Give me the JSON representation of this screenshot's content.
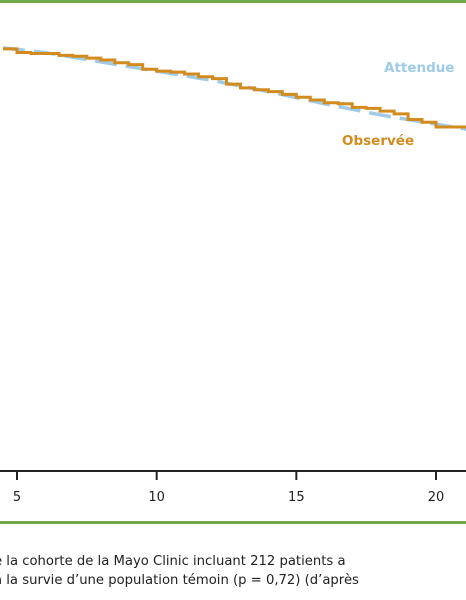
{
  "chart_data": {
    "type": "line",
    "title": "",
    "xlabel": "",
    "ylabel": "",
    "x_ticks": [
      5,
      10,
      15,
      20
    ],
    "xlim": [
      4.5,
      21.2
    ],
    "ylim": [
      0,
      1.0
    ],
    "grid": false,
    "series": [
      {
        "name": "Attendue",
        "color": "#9fcbe8",
        "style": "dashed",
        "x": [
          4.5,
          6,
          8,
          10,
          12,
          14,
          16,
          18,
          20,
          21.2
        ],
        "y": [
          0.97,
          0.965,
          0.955,
          0.945,
          0.935,
          0.923,
          0.91,
          0.898,
          0.888,
          0.882
        ]
      },
      {
        "name": "Observée",
        "color": "#d38b1e",
        "style": "step",
        "x": [
          4.5,
          5.0,
          5.5,
          6.5,
          7.0,
          7.5,
          8.0,
          8.5,
          9.0,
          9.5,
          10.0,
          10.5,
          11.0,
          11.5,
          12.0,
          12.5,
          13.0,
          13.5,
          14.0,
          14.5,
          15.0,
          15.5,
          16.0,
          16.5,
          17.0,
          17.5,
          18.0,
          18.5,
          19.0,
          19.5,
          20.0,
          21.2
        ],
        "y": [
          0.969,
          0.965,
          0.964,
          0.962,
          0.961,
          0.959,
          0.957,
          0.954,
          0.952,
          0.947,
          0.945,
          0.944,
          0.942,
          0.939,
          0.937,
          0.931,
          0.927,
          0.925,
          0.923,
          0.92,
          0.917,
          0.914,
          0.911,
          0.91,
          0.906,
          0.905,
          0.902,
          0.899,
          0.893,
          0.89,
          0.885,
          0.885
        ]
      }
    ]
  },
  "caption": {
    "line1": "e la cohorte de la Mayo Clinic incluant 212 patients a",
    "line2": "à la survie d’une population témoin (p = 0,72) (d’après"
  }
}
